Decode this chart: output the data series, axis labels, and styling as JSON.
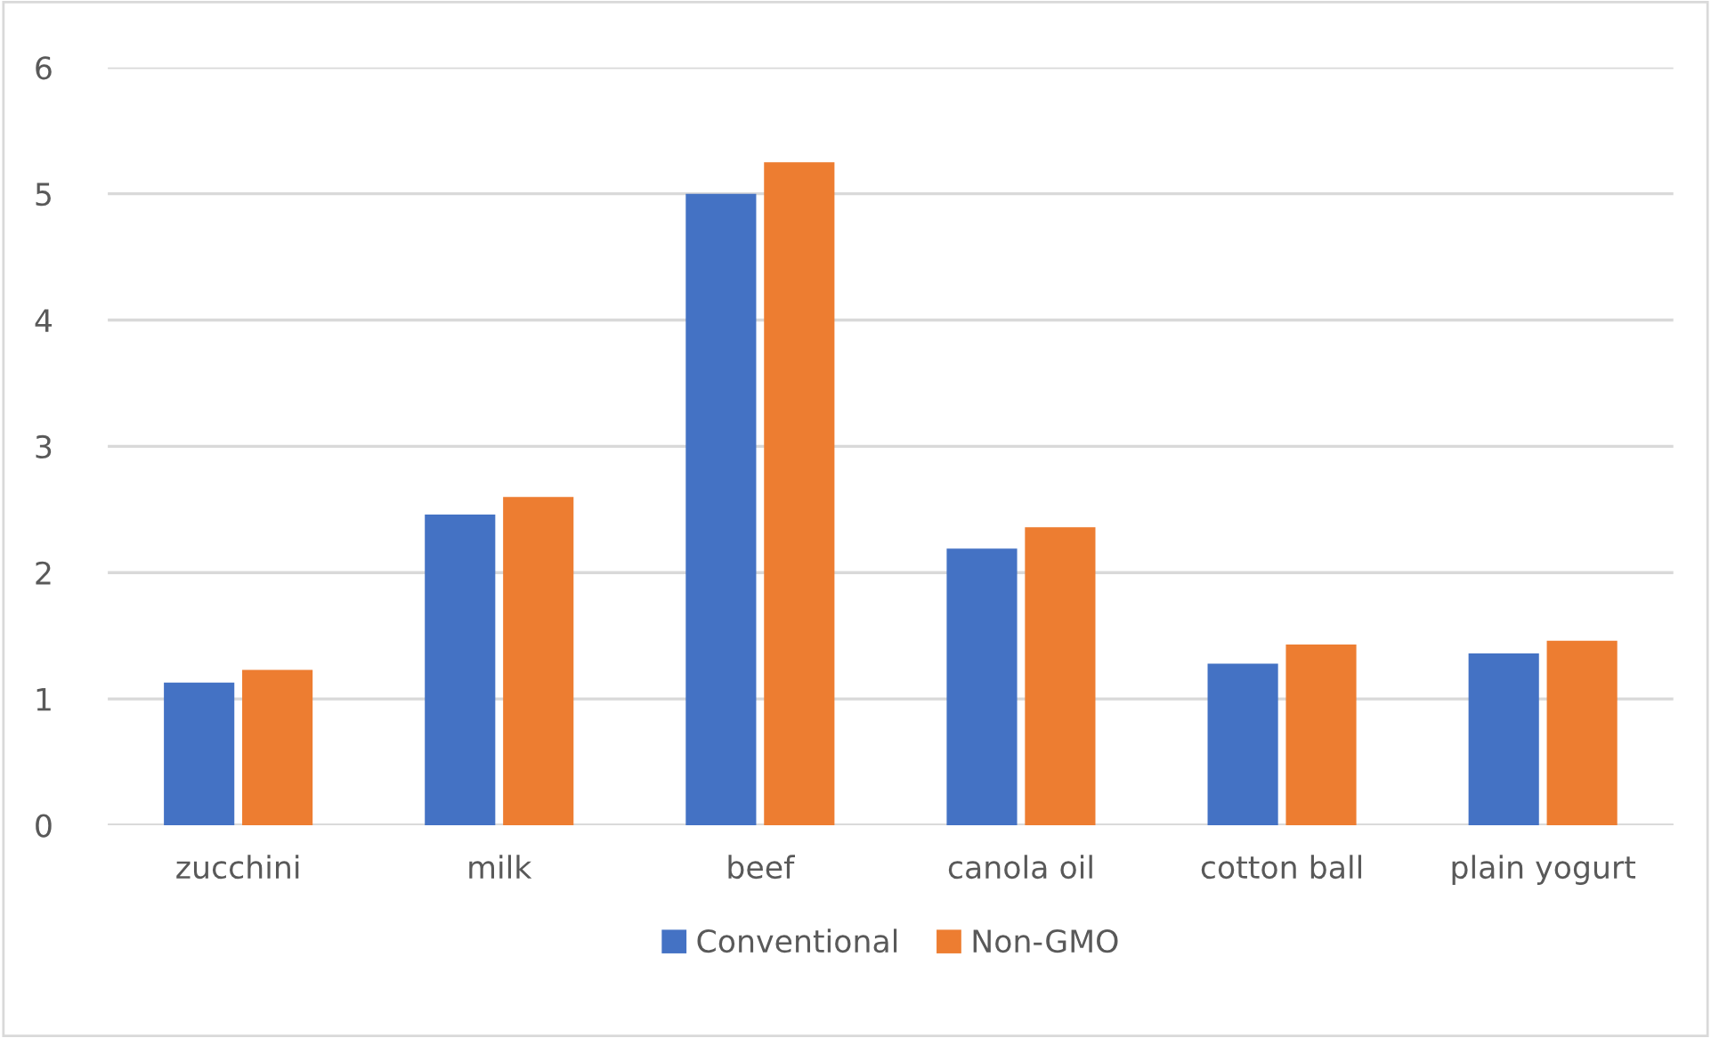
{
  "chart_data": {
    "type": "bar",
    "categories": [
      "zucchini",
      "milk",
      "beef",
      "canola oil",
      "cotton ball",
      "plain yogurt"
    ],
    "series": [
      {
        "name": "Conventional",
        "color": "#4472c4",
        "values": [
          1.13,
          2.46,
          5.0,
          2.19,
          1.28,
          1.36
        ]
      },
      {
        "name": "Non-GMO",
        "color": "#ed7d31",
        "values": [
          1.23,
          2.6,
          5.25,
          2.36,
          1.43,
          1.46
        ]
      }
    ],
    "ylim": [
      0,
      6
    ],
    "yticks": [
      0,
      1,
      2,
      3,
      4,
      5,
      6
    ],
    "grid": "y",
    "legend": "bottom"
  }
}
